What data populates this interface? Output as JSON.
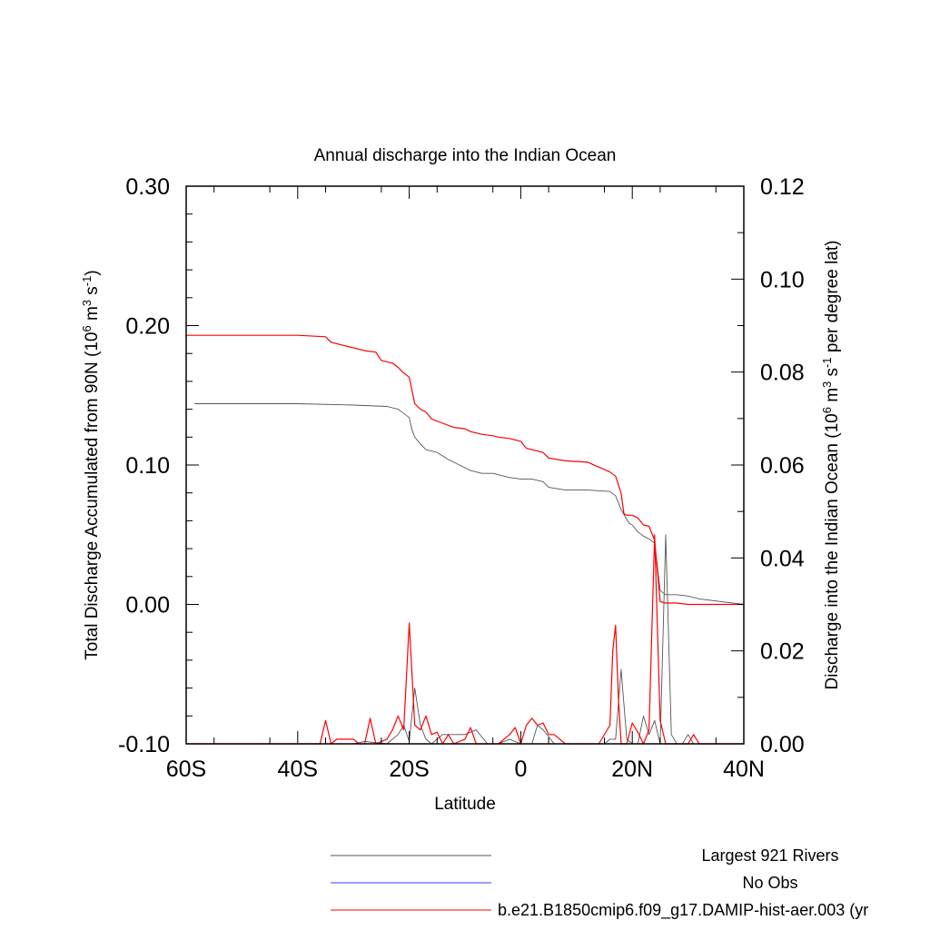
{
  "chart_data": {
    "type": "line",
    "title": "Annual discharge into the Indian Ocean",
    "xlabel": "Latitude",
    "ylabel_left": "Total Discharge Accumulated from 90N (10<sup>6</sup> m<sup>3</sup> s<sup>-1</sup>)",
    "ylabel_right": "Discharge into the Indian Ocean (10<sup>6</sup> m<sup>3</sup> s<sup>-1</sup> per degree lat)",
    "xlim": [
      -60,
      40
    ],
    "ylim_left": [
      -0.1,
      0.3
    ],
    "ylim_right": [
      0,
      0.12
    ],
    "x_ticks": [
      {
        "value": -60,
        "label": "60S"
      },
      {
        "value": -40,
        "label": "40S"
      },
      {
        "value": -20,
        "label": "20S"
      },
      {
        "value": 0,
        "label": "0"
      },
      {
        "value": 20,
        "label": "20N"
      },
      {
        "value": 40,
        "label": "40N"
      }
    ],
    "y_ticks_left": [
      {
        "value": 0.3,
        "label": "0.30"
      },
      {
        "value": 0.2,
        "label": "0.20"
      },
      {
        "value": 0.1,
        "label": "0.10"
      },
      {
        "value": 0.0,
        "label": "0.00"
      },
      {
        "value": -0.1,
        "label": "-0.10"
      }
    ],
    "y_ticks_right": [
      {
        "value": 0.12,
        "label": "0.12"
      },
      {
        "value": 0.1,
        "label": "0.10"
      },
      {
        "value": 0.08,
        "label": "0.08"
      },
      {
        "value": 0.06,
        "label": "0.06"
      },
      {
        "value": 0.04,
        "label": "0.04"
      },
      {
        "value": 0.02,
        "label": "0.02"
      },
      {
        "value": 0.0,
        "label": "0.00"
      }
    ],
    "grid": false,
    "legend_position": "bottom-right",
    "series": [
      {
        "name": "Largest 921 Rivers",
        "color": "#555555",
        "axis": "left",
        "x": [
          -58.5,
          -40,
          -30,
          -24,
          -22,
          -21,
          -20,
          -19.5,
          -19,
          -18,
          -17,
          -15,
          -13,
          -11,
          -9,
          -7,
          -5,
          -2,
          0,
          2,
          4,
          5,
          8,
          12,
          16,
          17,
          18,
          19,
          19.5,
          20,
          21,
          22,
          23,
          24,
          25,
          26,
          28,
          30,
          32,
          40
        ],
        "y": [
          0.144,
          0.144,
          0.143,
          0.142,
          0.14,
          0.137,
          0.134,
          0.125,
          0.12,
          0.115,
          0.111,
          0.109,
          0.104,
          0.1,
          0.096,
          0.094,
          0.094,
          0.091,
          0.09,
          0.09,
          0.088,
          0.084,
          0.082,
          0.082,
          0.081,
          0.078,
          0.068,
          0.061,
          0.058,
          0.057,
          0.052,
          0.049,
          0.047,
          0.044,
          0.01,
          0.007,
          0.007,
          0.006,
          0.004,
          0.0
        ]
      },
      {
        "name": "No Obs",
        "color": "#3b3bff",
        "axis": "left",
        "x": [],
        "y": []
      },
      {
        "name": "b.e21.B1850cmip6.f09_g17.DAMIP-hist-aer.003 (yr",
        "color": "#ff0000",
        "axis": "left",
        "x": [
          -60,
          -40,
          -35,
          -34,
          -31,
          -28,
          -26,
          -25,
          -23,
          -22,
          -21,
          -20,
          -19,
          -18,
          -17,
          -16,
          -14,
          -12,
          -10,
          -9,
          -7,
          -5,
          -4,
          -2,
          0,
          1,
          4,
          5,
          8,
          12,
          16,
          17,
          18,
          18.5,
          19,
          20,
          21,
          22,
          23,
          24,
          25,
          26,
          28,
          30,
          32,
          40
        ],
        "y": [
          0.193,
          0.193,
          0.192,
          0.188,
          0.185,
          0.182,
          0.181,
          0.175,
          0.173,
          0.17,
          0.166,
          0.163,
          0.144,
          0.14,
          0.138,
          0.133,
          0.13,
          0.127,
          0.126,
          0.124,
          0.122,
          0.121,
          0.12,
          0.119,
          0.117,
          0.112,
          0.109,
          0.105,
          0.103,
          0.102,
          0.095,
          0.092,
          0.08,
          0.065,
          0.064,
          0.064,
          0.062,
          0.057,
          0.056,
          0.046,
          0.002,
          0.001,
          0.001,
          0.0,
          0.0,
          0.0
        ]
      },
      {
        "name": "Largest 921 Rivers (per degree lat)",
        "color": "#555555",
        "axis": "right",
        "x": [
          -60,
          -30,
          -28,
          -24,
          -22,
          -21,
          -20,
          -19,
          -18,
          -17,
          -16,
          -14,
          -12,
          -10,
          -8,
          -6,
          -4,
          -2,
          0,
          2,
          3,
          4,
          6,
          10,
          14,
          15,
          16,
          17,
          18,
          19,
          20,
          21,
          22,
          23,
          24,
          25,
          26,
          27,
          28,
          29,
          30,
          31,
          32,
          40
        ],
        "y": [
          0.0,
          0.0,
          0.0005,
          0.0,
          0.002,
          0.004,
          0.0005,
          0.012,
          0.004,
          0.001,
          0.0,
          0.002,
          0.002,
          0.002,
          0.003,
          0.0,
          0.0,
          0.001,
          0.0,
          0.0,
          0.004,
          0.003,
          0.0,
          0.0,
          0.0,
          0.0,
          0.001,
          0.001,
          0.016,
          0.001,
          0.0,
          0.0,
          0.006,
          0.002,
          0.005,
          0.0,
          0.045,
          0.002,
          0.0,
          0.0,
          0.002,
          0.0,
          0.0,
          0.0
        ]
      },
      {
        "name": "b.e21.B1850cmip6.f09_g17.DAMIP-hist-aer.003 (per degree lat)",
        "color": "#ff0000",
        "axis": "right",
        "x": [
          -60,
          -36,
          -35,
          -34,
          -33,
          -30,
          -29,
          -28,
          -27,
          -26,
          -25,
          -24,
          -23,
          -22,
          -21,
          -20,
          -19,
          -18,
          -17,
          -16,
          -15,
          -14,
          -13,
          -12,
          -10,
          -9,
          -8,
          -6,
          -4,
          -2,
          -1,
          0,
          1,
          2,
          3,
          4,
          5,
          6,
          8,
          10,
          12,
          14,
          16,
          16.5,
          17,
          17.5,
          18,
          19,
          20,
          21,
          22,
          23,
          24,
          25,
          26,
          27,
          28,
          29,
          30,
          31,
          32,
          40
        ],
        "y": [
          0.0,
          0.0,
          0.005,
          0.0,
          0.001,
          0.001,
          0.0,
          0.0,
          0.0055,
          0.0,
          0.0005,
          0.001,
          0.003,
          0.006,
          0.003,
          0.026,
          0.004,
          0.003,
          0.006,
          0.002,
          0.0025,
          0.0,
          0.002,
          0.0,
          0.001,
          0.0035,
          0.0,
          0.0,
          0.0,
          0.002,
          0.0035,
          0.0,
          0.004,
          0.0055,
          0.004,
          0.0045,
          0.002,
          0.002,
          0.0,
          0.0,
          0.0,
          0.0,
          0.004,
          0.02,
          0.0255,
          0.01,
          0.0,
          0.0,
          0.0045,
          0.0025,
          0.0,
          0.003,
          0.045,
          0.005,
          0.0,
          0.0,
          0.0,
          0.0,
          0.0,
          0.002,
          0.0,
          0.0
        ]
      }
    ],
    "legend": [
      {
        "label": "Largest 921 Rivers",
        "color": "#555555"
      },
      {
        "label": "No Obs",
        "color": "#3b3bff"
      },
      {
        "label": "b.e21.B1850cmip6.f09_g17.DAMIP-hist-aer.003 (yr",
        "color": "#ff0000"
      }
    ]
  }
}
